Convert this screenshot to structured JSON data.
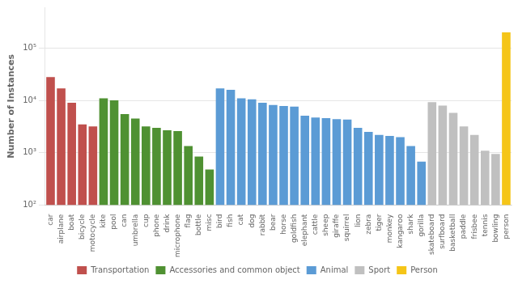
{
  "chart_data": {
    "type": "bar",
    "categories": [
      "car",
      "airplane",
      "boat",
      "bicycle",
      "motocycle",
      "kite",
      "pool",
      "can",
      "umbrella",
      "cup",
      "phone",
      "drink",
      "microphone",
      "flag",
      "bottle",
      "misc",
      "bird",
      "fish",
      "cat",
      "dog",
      "rabbit",
      "bear",
      "horse",
      "goldfish",
      "elephant",
      "cattle",
      "sheep",
      "giraffe",
      "squirrel",
      "lion",
      "zebra",
      "tiger",
      "monkey",
      "kangaroo",
      "shark",
      "gorilla",
      "skateboard",
      "surfboard",
      "basketball",
      "paddle",
      "frisbee",
      "tennis",
      "bowling",
      "person"
    ],
    "series": [
      {
        "name": "Transportation",
        "color": "#c0504d",
        "values": [
          28000,
          17000,
          9000,
          3500,
          3200,
          null,
          null,
          null,
          null,
          null,
          null,
          null,
          null,
          null,
          null,
          null,
          null,
          null,
          null,
          null,
          null,
          null,
          null,
          null,
          null,
          null,
          null,
          null,
          null,
          null,
          null,
          null,
          null,
          null,
          null,
          null,
          null,
          null,
          null,
          null,
          null,
          null,
          null,
          null
        ]
      },
      {
        "name": "Accessories and common object",
        "color": "#4f9132",
        "values": [
          null,
          null,
          null,
          null,
          null,
          11000,
          10000,
          5500,
          4500,
          3200,
          3000,
          2700,
          2600,
          1350,
          850,
          480,
          null,
          null,
          null,
          null,
          null,
          null,
          null,
          null,
          null,
          null,
          null,
          null,
          null,
          null,
          null,
          null,
          null,
          null,
          null,
          null,
          null,
          null,
          null,
          null,
          null,
          null,
          null,
          null
        ]
      },
      {
        "name": "Animal",
        "color": "#5b9bd5",
        "values": [
          null,
          null,
          null,
          null,
          null,
          null,
          null,
          null,
          null,
          null,
          null,
          null,
          null,
          null,
          null,
          null,
          17000,
          16000,
          11000,
          10500,
          9000,
          8200,
          7800,
          7600,
          5100,
          4700,
          4600,
          4400,
          4300,
          3000,
          2500,
          2200,
          2100,
          2000,
          1350,
          680,
          null,
          null,
          null,
          null,
          null,
          null,
          null,
          null
        ]
      },
      {
        "name": "Sport",
        "color": "#c0c0c0",
        "values": [
          null,
          null,
          null,
          null,
          null,
          null,
          null,
          null,
          null,
          null,
          null,
          null,
          null,
          null,
          null,
          null,
          null,
          null,
          null,
          null,
          null,
          null,
          null,
          null,
          null,
          null,
          null,
          null,
          null,
          null,
          null,
          null,
          null,
          null,
          null,
          null,
          9300,
          8000,
          5800,
          3200,
          2200,
          1100,
          950,
          null
        ]
      },
      {
        "name": "Person",
        "color": "#f5c518",
        "values": [
          null,
          null,
          null,
          null,
          null,
          null,
          null,
          null,
          null,
          null,
          null,
          null,
          null,
          null,
          null,
          null,
          null,
          null,
          null,
          null,
          null,
          null,
          null,
          null,
          null,
          null,
          null,
          null,
          null,
          null,
          null,
          null,
          null,
          null,
          null,
          null,
          null,
          null,
          null,
          null,
          null,
          null,
          null,
          200000
        ]
      }
    ],
    "ylabel": "Number of Instances",
    "log": "y",
    "ylim": [
      100,
      600000
    ],
    "yticks": [
      {
        "value": 100,
        "label": "10²"
      },
      {
        "value": 1000,
        "label": "10³"
      },
      {
        "value": 10000,
        "label": "10⁴"
      },
      {
        "value": 100000,
        "label": "10⁵"
      }
    ],
    "grid": true,
    "legend": "bottom"
  }
}
